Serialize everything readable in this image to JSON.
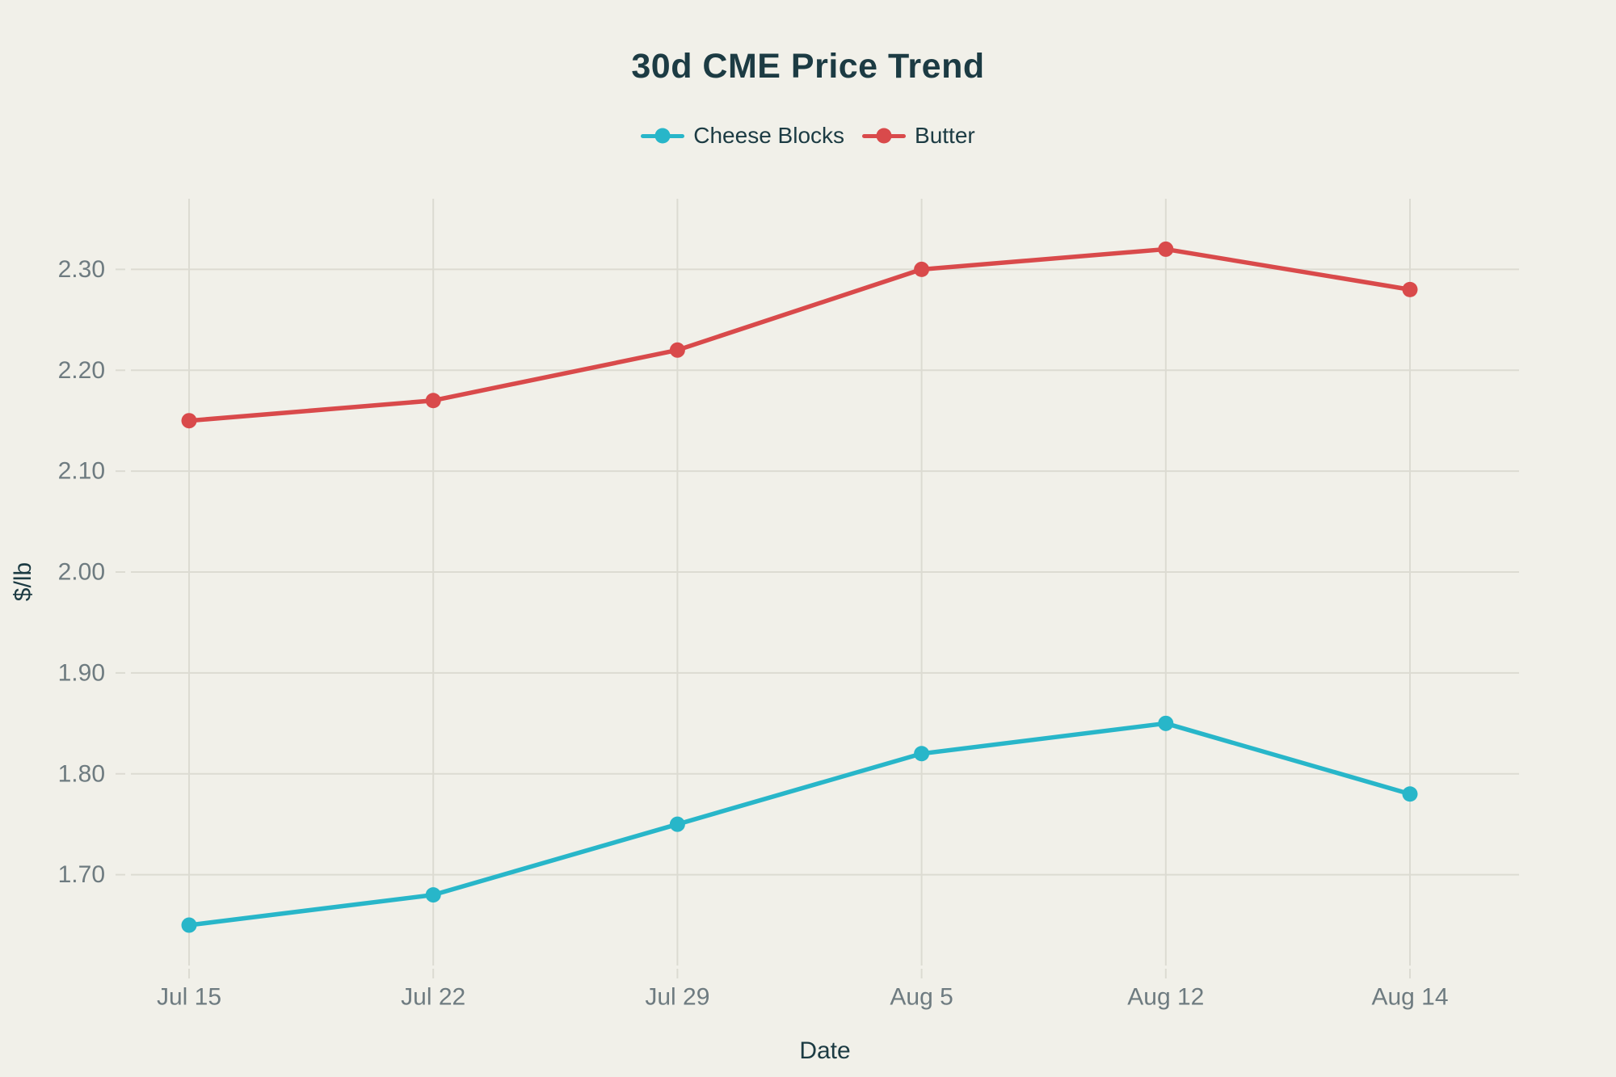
{
  "theme": {
    "background": "#f1f0e9",
    "text_dark": "#1c3b43",
    "tick_text": "#6e7b80",
    "grid": "#dcdbd2"
  },
  "chart_data": {
    "type": "line",
    "title": "30d CME Price Trend",
    "xlabel": "Date",
    "ylabel": "$/lb",
    "categories": [
      "Jul 15",
      "Jul 22",
      "Jul 29",
      "Aug 5",
      "Aug 12",
      "Aug 14"
    ],
    "series": [
      {
        "name": "Cheese Blocks",
        "color": "#28b6c9",
        "values": [
          1.65,
          1.68,
          1.75,
          1.82,
          1.85,
          1.78
        ]
      },
      {
        "name": "Butter",
        "color": "#d94a4b",
        "values": [
          2.15,
          2.17,
          2.22,
          2.3,
          2.32,
          2.28
        ]
      }
    ],
    "y_ticks": [
      1.7,
      1.8,
      1.9,
      2.0,
      2.1,
      2.2,
      2.3
    ],
    "y_tick_decimals": 2,
    "ylim": [
      1.61,
      2.37
    ],
    "grid": true,
    "legend_position": "top-center",
    "markers": "circle"
  }
}
